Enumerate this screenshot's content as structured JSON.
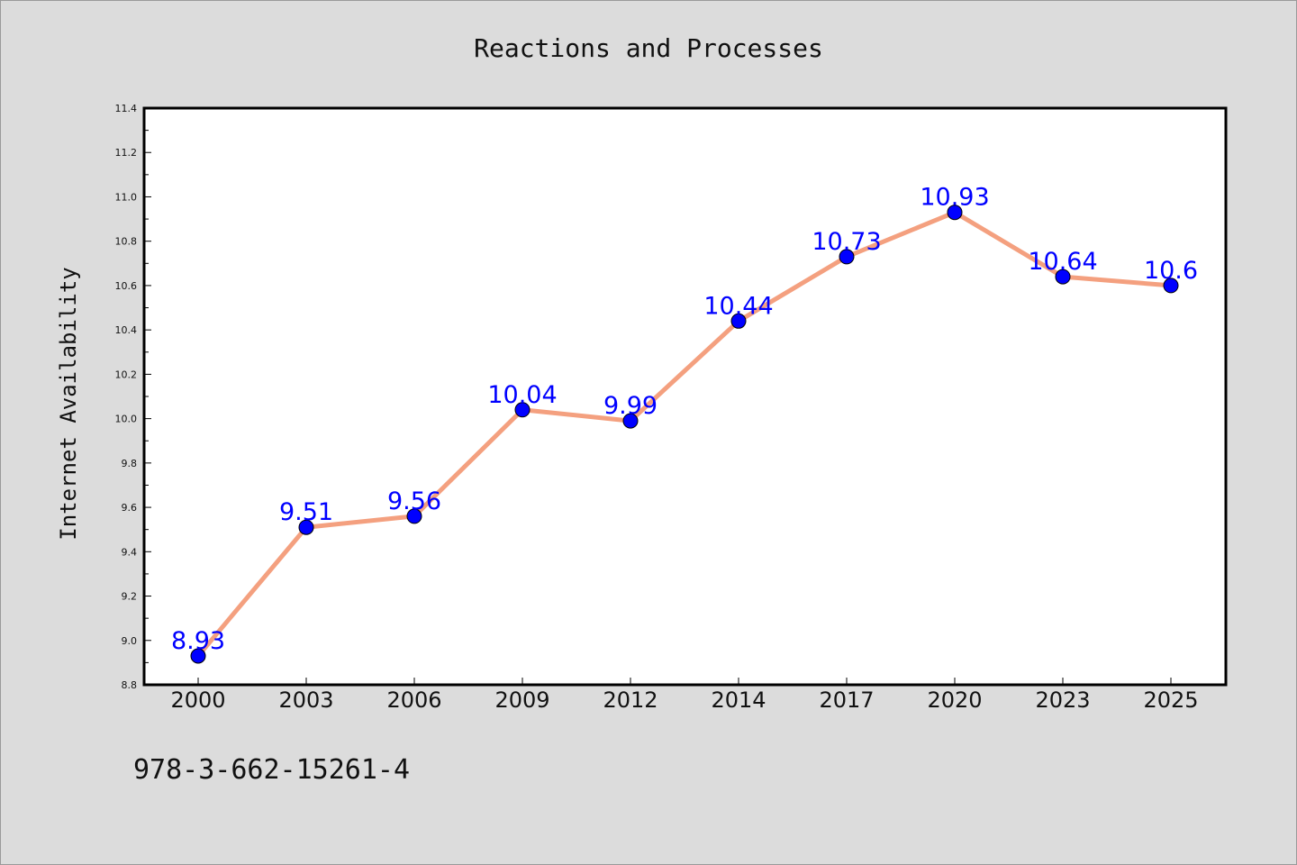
{
  "chart_data": {
    "type": "line",
    "title": "Reactions and Processes",
    "xlabel": "",
    "ylabel": "Internet Availability",
    "categories": [
      "2000",
      "2003",
      "2006",
      "2009",
      "2012",
      "2014",
      "2017",
      "2020",
      "2023",
      "2025"
    ],
    "series": [
      {
        "values": [
          8.93,
          9.51,
          9.56,
          10.04,
          9.99,
          10.44,
          10.73,
          10.93,
          10.64,
          10.6
        ],
        "data_labels": [
          "8.93",
          "9.51",
          "9.56",
          "10.04",
          "9.99",
          "10.44",
          "10.73",
          "10.93",
          "10.64",
          "10.6"
        ],
        "line_color": "#f4a07f",
        "marker_color": "#0000ff"
      }
    ],
    "ylim": [
      8.8,
      11.4
    ],
    "yticks": [
      8.8,
      9.0,
      9.2,
      9.4,
      9.6,
      9.8,
      10.0,
      10.2,
      10.4,
      10.6,
      10.8,
      11.0,
      11.2,
      11.4
    ],
    "ytick_labels": [
      "8.8",
      "9.0",
      "9.2",
      "9.4",
      "9.6",
      "9.8",
      "10.0",
      "10.2",
      "10.4",
      "10.6",
      "10.8",
      "11.0",
      "11.2",
      "11.4"
    ],
    "grid": false,
    "legend": "none",
    "label_color": "#0000ff"
  },
  "footer": {
    "text": "978-3-662-15261-4"
  },
  "colors": {
    "background": "#dcdcdc",
    "plot_background": "#ffffff",
    "line": "#f4a07f",
    "marker": "#0000ff",
    "data_label": "#0000ff"
  }
}
